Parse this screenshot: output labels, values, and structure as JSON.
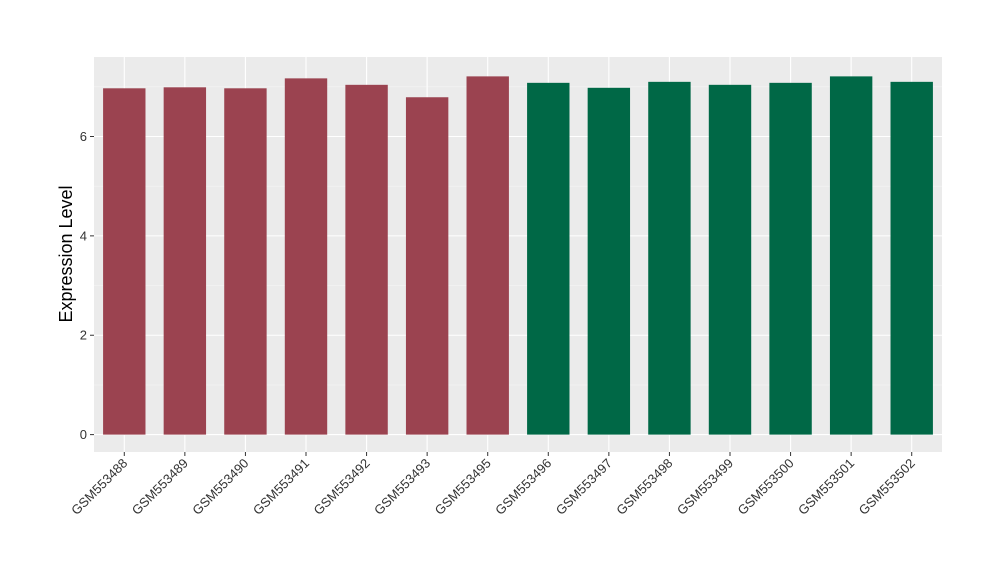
{
  "chart_data": {
    "type": "bar",
    "ylabel": "Expression Level",
    "xlabel": "",
    "ylim": [
      -0.35,
      7.6
    ],
    "yticks": [
      0,
      2,
      4,
      6
    ],
    "grid": true,
    "panel_background": "#ebebeb",
    "categories": [
      "GSM553488",
      "GSM553489",
      "GSM553490",
      "GSM553491",
      "GSM553492",
      "GSM553493",
      "GSM553495",
      "GSM553496",
      "GSM553497",
      "GSM553498",
      "GSM553499",
      "GSM553500",
      "GSM553501",
      "GSM553502"
    ],
    "values": [
      6.97,
      6.99,
      6.97,
      7.17,
      7.04,
      6.79,
      7.21,
      7.08,
      6.98,
      7.1,
      7.04,
      7.08,
      7.21,
      7.1
    ],
    "colors": [
      "#9b4350",
      "#9b4350",
      "#9b4350",
      "#9b4350",
      "#9b4350",
      "#9b4350",
      "#9b4350",
      "#006846",
      "#006846",
      "#006846",
      "#006846",
      "#006846",
      "#006846",
      "#006846"
    ]
  }
}
